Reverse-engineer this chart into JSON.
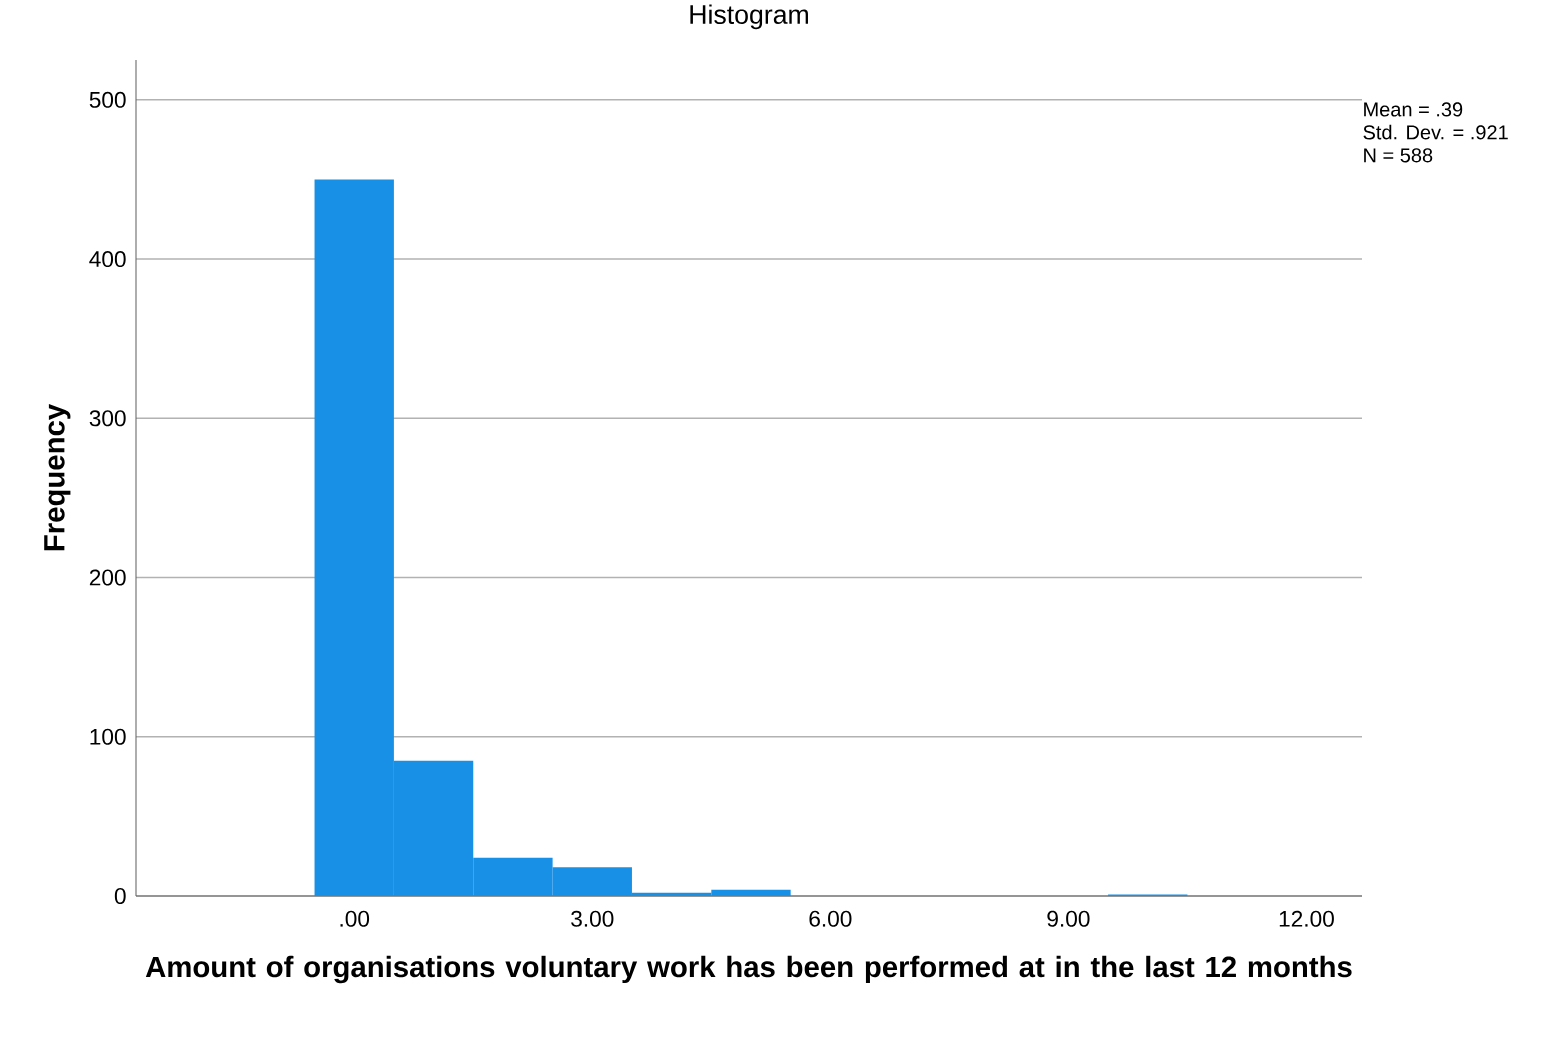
{
  "chart_data": {
    "type": "histogram",
    "title": "Histogram",
    "xlabel": "Amount of organisations voluntary work has been performed at in the last 12 months",
    "ylabel": "Frequency",
    "bins": [
      -0.5,
      0.5,
      1.5,
      2.5,
      3.5,
      4.5,
      5.5,
      6.5,
      7.5,
      8.5,
      9.5,
      10.5
    ],
    "values": [
      450,
      85,
      24,
      18,
      2,
      4,
      0,
      0,
      0,
      0,
      1
    ],
    "color": "#1790e6",
    "xlim": [
      -2.75,
      12.7
    ],
    "ylim": [
      0,
      525
    ],
    "xticks": [
      {
        "value": 0,
        "label": ".00"
      },
      {
        "value": 3,
        "label": "3.00"
      },
      {
        "value": 6,
        "label": "6.00"
      },
      {
        "value": 9,
        "label": "9.00"
      },
      {
        "value": 12,
        "label": "12.00"
      }
    ],
    "yticks": [
      0,
      100,
      200,
      300,
      400,
      500
    ],
    "grid": "y",
    "annotations": [
      "Mean = .39",
      "Std. Dev. = .921",
      "N = 588"
    ]
  }
}
